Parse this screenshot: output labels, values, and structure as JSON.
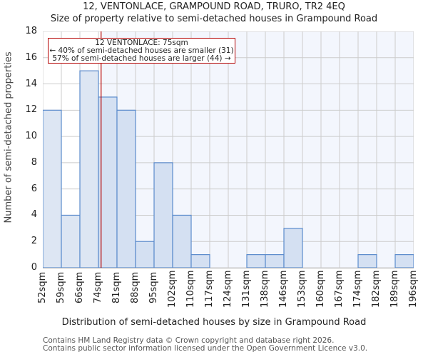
{
  "header": {
    "title": "12, VENTONLACE, GRAMPOUND ROAD, TRURO, TR2 4EQ",
    "subtitle": "Size of property relative to semi-detached houses in Grampound Road"
  },
  "annotation": {
    "line1": "12 VENTONLACE: 75sqm",
    "line2": "← 40% of semi-detached houses are smaller (31)",
    "line3": "57% of semi-detached houses are larger (44) →"
  },
  "axes": {
    "ylabel": "Number of semi-detached properties",
    "xlabel": "Distribution of semi-detached houses by size in Grampound Road",
    "yticks": [
      "0",
      "2",
      "4",
      "6",
      "8",
      "10",
      "12",
      "14",
      "16",
      "18"
    ],
    "xticks": [
      "52sqm",
      "59sqm",
      "66sqm",
      "74sqm",
      "81sqm",
      "88sqm",
      "95sqm",
      "102sqm",
      "110sqm",
      "117sqm",
      "124sqm",
      "131sqm",
      "138sqm",
      "146sqm",
      "153sqm",
      "160sqm",
      "167sqm",
      "174sqm",
      "182sqm",
      "189sqm",
      "196sqm"
    ]
  },
  "footer": {
    "line1": "Contains HM Land Registry data © Crown copyright and database right 2026.",
    "line2": "Contains public sector information licensed under the Open Government Licence v3.0."
  },
  "colors": {
    "bar_fill_left": "#dde6f3",
    "bar_fill_right": "#d4e0f2",
    "bar_edge": "#5b8bcc",
    "bg_right": "#f3f6fd",
    "grid": "#cccccc",
    "marker": "#b40000"
  },
  "chart_data": {
    "type": "bar",
    "title": "12, VENTONLACE, GRAMPOUND ROAD, TRURO, TR2 4EQ — Size of property relative to semi-detached houses in Grampound Road",
    "xlabel": "Distribution of semi-detached houses by size in Grampound Road",
    "ylabel": "Number of semi-detached properties",
    "bin_edges": [
      52,
      59,
      66,
      74,
      81,
      88,
      95,
      102,
      110,
      117,
      124,
      131,
      138,
      146,
      153,
      160,
      167,
      174,
      182,
      189,
      196
    ],
    "categories": [
      "52-59sqm",
      "59-66sqm",
      "66-74sqm",
      "74-81sqm",
      "81-88sqm",
      "88-95sqm",
      "95-102sqm",
      "102-110sqm",
      "110-117sqm",
      "117-124sqm",
      "124-131sqm",
      "131-138sqm",
      "138-146sqm",
      "146-153sqm",
      "153-160sqm",
      "160-167sqm",
      "167-174sqm",
      "174-182sqm",
      "182-189sqm",
      "189-196sqm"
    ],
    "values": [
      12,
      4,
      15,
      13,
      12,
      2,
      8,
      4,
      1,
      0,
      0,
      1,
      1,
      3,
      0,
      0,
      0,
      1,
      0,
      1
    ],
    "ylim": [
      0,
      18
    ],
    "grid": true,
    "marker": {
      "x": 75,
      "label": "12 VENTONLACE: 75sqm"
    },
    "annotations": [
      "12 VENTONLACE: 75sqm",
      "← 40% of semi-detached houses are smaller (31)",
      "57% of semi-detached houses are larger (44) →"
    ]
  }
}
